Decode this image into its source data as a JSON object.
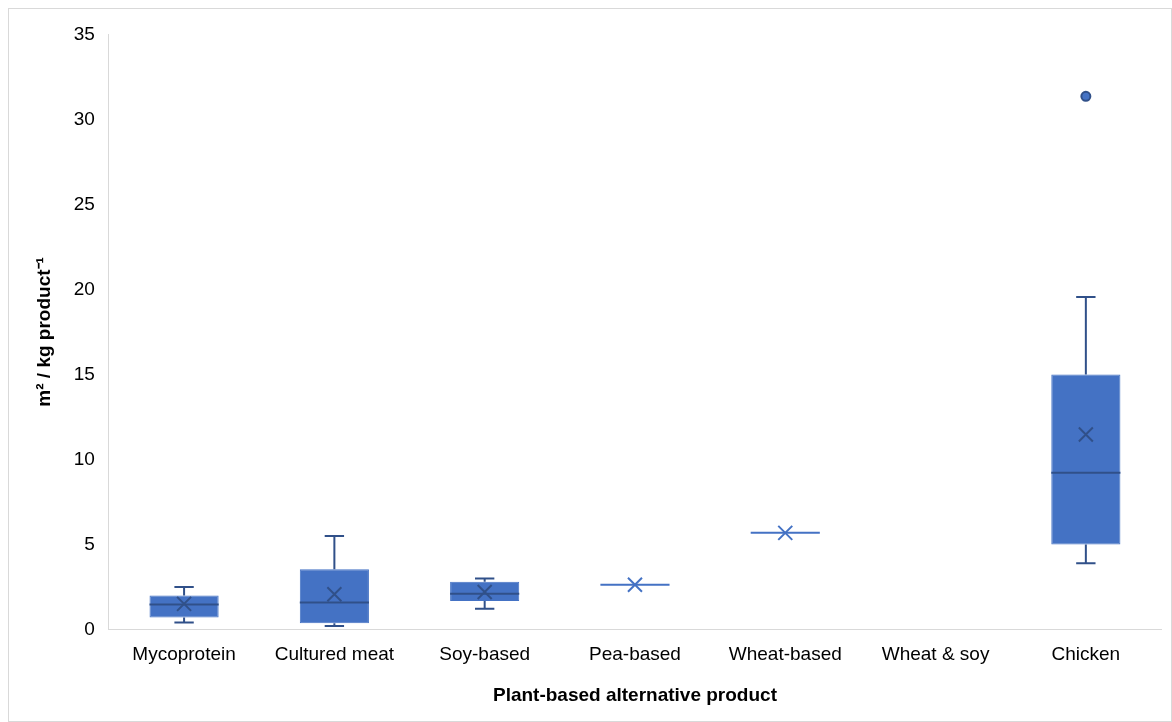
{
  "chart_data": {
    "type": "box",
    "xlabel": "Plant-based alternative product",
    "ylabel": "m² / kg product⁻¹",
    "categories": [
      "Mycoprotein",
      "Cultured meat",
      "Soy-based",
      "Pea-based",
      "Wheat-based",
      "Wheat & soy",
      "Chicken"
    ],
    "color": "#4472c4",
    "boxes": [
      {
        "low": 0.4,
        "q1": 0.7,
        "median": 1.46,
        "q3": 2.0,
        "high": 2.5,
        "mean": 1.5
      },
      {
        "low": 0.2,
        "q1": 0.36,
        "median": 1.58,
        "q3": 3.54,
        "high": 5.5,
        "mean": 2.07
      },
      {
        "low": 1.22,
        "q1": 1.67,
        "median": 2.1,
        "q3": 2.8,
        "high": 3.0,
        "mean": 2.2
      },
      {
        "low": 2.63,
        "q1": 2.63,
        "median": 2.63,
        "q3": 2.63,
        "high": 2.63,
        "mean": 2.63
      },
      {
        "low": 5.68,
        "q1": 5.68,
        "median": 5.68,
        "q3": 5.68,
        "high": 5.68,
        "mean": 5.68
      },
      null,
      {
        "low": 3.89,
        "q1": 4.99,
        "median": 9.22,
        "q3": 15.0,
        "high": 19.55,
        "mean": 11.46,
        "outliers": [
          31.36
        ]
      }
    ],
    "ylim": [
      0,
      35
    ],
    "yticks": [
      0,
      5,
      10,
      15,
      20,
      25,
      30,
      35
    ],
    "grid": false,
    "legend": false,
    "marker": "cross"
  }
}
